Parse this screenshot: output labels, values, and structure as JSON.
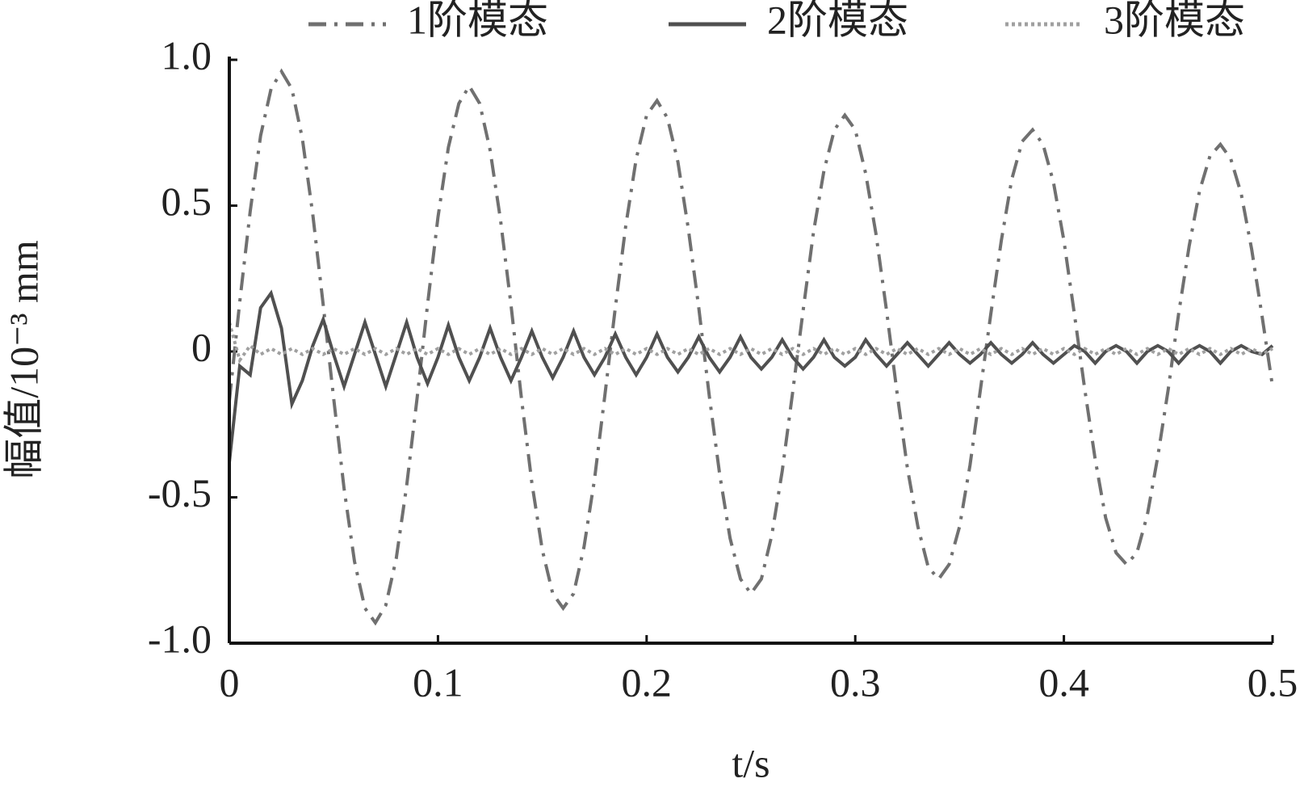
{
  "chart_data": {
    "type": "line",
    "x_label": "t/s",
    "y_label": "幅值/10⁻³ mm",
    "xlim": [
      0,
      0.5
    ],
    "ylim": [
      -1,
      1
    ],
    "xticks": [
      0,
      0.1,
      0.2,
      0.3,
      0.4,
      0.5
    ],
    "yticks": [
      {
        "value": -1,
        "label": "-1.0"
      },
      -0.5,
      0,
      0.5,
      {
        "value": 1,
        "label": "1.0"
      }
    ],
    "x": [
      0,
      0.005,
      0.01,
      0.015,
      0.02,
      0.025,
      0.03,
      0.035,
      0.04,
      0.045,
      0.05,
      0.055,
      0.06,
      0.065,
      0.07,
      0.075,
      0.08,
      0.085,
      0.09,
      0.095,
      0.1,
      0.105,
      0.11,
      0.115,
      0.12,
      0.125,
      0.13,
      0.135,
      0.14,
      0.145,
      0.15,
      0.155,
      0.16,
      0.165,
      0.17,
      0.175,
      0.18,
      0.185,
      0.19,
      0.195,
      0.2,
      0.205,
      0.21,
      0.215,
      0.22,
      0.225,
      0.23,
      0.235,
      0.24,
      0.245,
      0.25,
      0.255,
      0.26,
      0.265,
      0.27,
      0.275,
      0.28,
      0.285,
      0.29,
      0.295,
      0.3,
      0.305,
      0.31,
      0.315,
      0.32,
      0.325,
      0.33,
      0.335,
      0.34,
      0.345,
      0.35,
      0.355,
      0.36,
      0.365,
      0.37,
      0.375,
      0.38,
      0.385,
      0.39,
      0.395,
      0.4,
      0.405,
      0.41,
      0.415,
      0.42,
      0.425,
      0.43,
      0.435,
      0.44,
      0.445,
      0.45,
      0.455,
      0.46,
      0.465,
      0.47,
      0.475,
      0.48,
      0.485,
      0.49,
      0.495,
      0.5
    ],
    "series": [
      {
        "name": "1阶模态",
        "color": "#707070",
        "dash": "dashdot",
        "values": [
          -0.17,
          0.17,
          0.48,
          0.74,
          0.9,
          0.96,
          0.9,
          0.73,
          0.47,
          0.16,
          -0.16,
          -0.47,
          -0.72,
          -0.88,
          -0.93,
          -0.87,
          -0.71,
          -0.46,
          -0.16,
          0.16,
          0.46,
          0.7,
          0.85,
          0.91,
          0.85,
          0.69,
          0.45,
          0.16,
          -0.16,
          -0.45,
          -0.68,
          -0.83,
          -0.88,
          -0.83,
          -0.67,
          -0.44,
          -0.15,
          0.15,
          0.43,
          0.66,
          0.81,
          0.86,
          0.8,
          0.65,
          0.42,
          0.15,
          -0.15,
          -0.42,
          -0.64,
          -0.78,
          -0.83,
          -0.78,
          -0.63,
          -0.41,
          -0.14,
          0.14,
          0.41,
          0.62,
          0.76,
          0.81,
          0.76,
          0.61,
          0.4,
          0.14,
          -0.14,
          -0.4,
          -0.6,
          -0.74,
          -0.78,
          -0.73,
          -0.6,
          -0.39,
          -0.13,
          0.13,
          0.38,
          0.59,
          0.72,
          0.76,
          0.71,
          0.58,
          0.38,
          0.13,
          -0.13,
          -0.37,
          -0.57,
          -0.69,
          -0.73,
          -0.69,
          -0.56,
          -0.36,
          -0.13,
          0.13,
          0.36,
          0.55,
          0.67,
          0.71,
          0.66,
          0.54,
          0.35,
          0.12,
          -0.12
        ]
      },
      {
        "name": "2阶模态",
        "color": "#505050",
        "dash": "solid",
        "values": [
          -0.38,
          -0.05,
          -0.08,
          0.15,
          0.2,
          0.08,
          -0.18,
          -0.1,
          0.02,
          0.11,
          -0.01,
          -0.12,
          -0.01,
          0.1,
          -0.01,
          -0.12,
          -0.01,
          0.1,
          -0.02,
          -0.11,
          -0.02,
          0.09,
          -0.02,
          -0.1,
          -0.02,
          0.08,
          -0.02,
          -0.1,
          -0.02,
          0.07,
          -0.02,
          -0.09,
          -0.02,
          0.07,
          -0.02,
          -0.08,
          -0.02,
          0.06,
          -0.02,
          -0.08,
          -0.02,
          0.06,
          -0.02,
          -0.07,
          -0.02,
          0.05,
          -0.02,
          -0.07,
          -0.02,
          0.05,
          -0.02,
          -0.06,
          -0.02,
          0.04,
          -0.02,
          -0.06,
          -0.02,
          0.04,
          -0.02,
          -0.05,
          -0.02,
          0.04,
          -0.01,
          -0.05,
          -0.01,
          0.03,
          -0.01,
          -0.05,
          -0.01,
          0.03,
          -0.01,
          -0.04,
          -0.01,
          0.03,
          -0.01,
          -0.04,
          -0.01,
          0.03,
          -0.01,
          -0.04,
          -0.01,
          0.02,
          0,
          -0.04,
          0,
          0.02,
          0,
          -0.04,
          0,
          0.02,
          0,
          -0.04,
          0,
          0.02,
          0,
          -0.04,
          0,
          0.02,
          0,
          -0.01,
          0.02
        ]
      },
      {
        "name": "3阶模态",
        "color": "#a0a0a0",
        "dash": "dotted",
        "values": [
          0.1,
          -0.03,
          0.02,
          -0.01,
          0.01,
          -0.01,
          0.01,
          -0.01,
          0.01,
          -0.01,
          0.01,
          -0.01,
          0.01,
          -0.01,
          0.01,
          -0.01,
          0.01,
          -0.01,
          0.01,
          -0.01,
          0.01,
          -0.01,
          0.01,
          -0.01,
          0.01,
          -0.01,
          0.01,
          -0.01,
          0.01,
          -0.01,
          0.01,
          -0.01,
          0.01,
          -0.01,
          0.01,
          -0.01,
          0.01,
          -0.01,
          0.01,
          -0.01,
          0.01,
          -0.01,
          0.01,
          -0.01,
          0.01,
          -0.01,
          0.01,
          -0.01,
          0.01,
          -0.01,
          0.01,
          -0.01,
          0.01,
          -0.01,
          0.01,
          -0.01,
          0.01,
          -0.01,
          0.01,
          -0.01,
          0.01,
          -0.01,
          0.01,
          -0.01,
          0.01,
          -0.01,
          0.01,
          -0.01,
          0.01,
          -0.01,
          0.01,
          -0.01,
          0.01,
          -0.01,
          0.01,
          -0.01,
          0.01,
          -0.01,
          0.01,
          -0.01,
          0.01,
          -0.01,
          0.01,
          -0.01,
          0.01,
          -0.01,
          0.01,
          -0.01,
          0.01,
          -0.01,
          0.01,
          -0.01,
          0.01,
          -0.01,
          0.01,
          -0.01,
          0.01,
          -0.01,
          0.01,
          -0.01,
          0.01
        ]
      }
    ]
  }
}
